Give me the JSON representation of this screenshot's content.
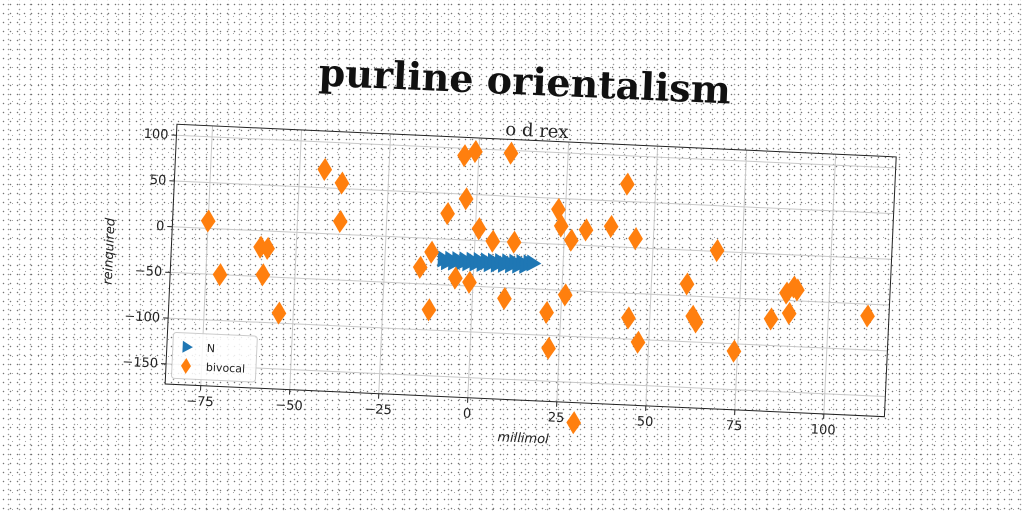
{
  "page_title": "purline orientalism",
  "chart_data": {
    "type": "scatter",
    "title": "o d rex",
    "xlabel": "millimol",
    "ylabel": "reinquired",
    "xlim": [
      -85,
      117
    ],
    "ylim": [
      -172,
      112
    ],
    "xticks": [
      -75,
      -50,
      -25,
      0,
      25,
      50,
      75,
      100
    ],
    "yticks": [
      100,
      50,
      0,
      -50,
      -100,
      -150
    ],
    "grid": true,
    "legend_position": "lower-left",
    "series": [
      {
        "name": "N",
        "marker": "triangle-right",
        "color": "#1f77b4",
        "x": [
          -8.5,
          -7.5,
          -6.5,
          -5.5,
          -4.5,
          -3.5,
          -2.5,
          -1.5,
          -0.5,
          0.5,
          1.5,
          2.5,
          3.5,
          4.5,
          5.5,
          6.5,
          7.5,
          8.5,
          9.5,
          10.5,
          11.5,
          12.5,
          13.5,
          14.5,
          15.5,
          16.5
        ],
        "y": [
          -22,
          -25,
          -22,
          -25,
          -22,
          -25,
          -22,
          -25,
          -22,
          -25,
          -22,
          -25,
          -22,
          -25,
          -22,
          -25,
          -22,
          -25,
          -22,
          -25,
          -22,
          -25,
          -22,
          -25,
          -22,
          -22
        ]
      },
      {
        "name": "bivocal",
        "marker": "diamond",
        "color": "#ff7f0e",
        "x": [
          -75,
          -71,
          -60,
          -58,
          -59,
          -54,
          -43,
          -38,
          -38,
          -15,
          -12,
          -12,
          -8,
          -5,
          -4,
          -3,
          -1,
          -1,
          1,
          5,
          9,
          9,
          11,
          21,
          22,
          23,
          24,
          26,
          27,
          30,
          31,
          38,
          42,
          44,
          45,
          47,
          60,
          62,
          63,
          68,
          74,
          84,
          88,
          89,
          90,
          91,
          111
        ],
        "y": [
          8,
          -50,
          -18,
          -19,
          -48,
          -89,
          70,
          56,
          14,
          -32,
          -15,
          -78,
          28,
          -42,
          92,
          45,
          97,
          -46,
          13,
          0,
          97,
          -62,
          0,
          -75,
          -114,
          38,
          20,
          -55,
          5,
          -194,
          17,
          22,
          69,
          -77,
          10,
          -103,
          -37,
          -72,
          -78,
          1,
          -108,
          -71,
          -42,
          -64,
          -35,
          -38,
          -63
        ]
      }
    ]
  }
}
